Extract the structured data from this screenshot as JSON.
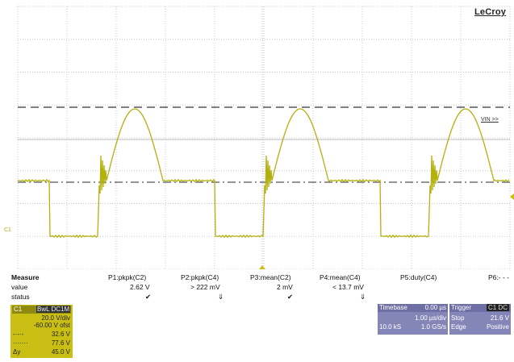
{
  "brand": "LeCroy",
  "cursor_label": "VIN >>",
  "channel_marker": "C1",
  "measure": {
    "title": "Measure",
    "row_labels": [
      "value",
      "status"
    ],
    "params": [
      {
        "name": "P1:pkpk(C2)",
        "value": "2.62 V",
        "status": "✔"
      },
      {
        "name": "P2:pkpk(C4)",
        "value": "> 222 mV",
        "status": "⇓"
      },
      {
        "name": "P3:mean(C2)",
        "value": "2 mV",
        "status": "✔"
      },
      {
        "name": "P4:mean(C4)",
        "value": "< 13.7 mV",
        "status": "⇓"
      },
      {
        "name": "P5:duty(C4)",
        "value": "",
        "status": ""
      },
      {
        "name": "P6:- - -",
        "value": "",
        "status": ""
      }
    ]
  },
  "channel1": {
    "name": "C1",
    "coupling": "BwL DC1M",
    "scale": "20.0 V/div",
    "offset": "-60.00 V ofst",
    "cursor1_value": "32.6 V",
    "cursor2_value": "77.6 V",
    "delta_label": "Δy",
    "delta_value": "45.0 V"
  },
  "timebase": {
    "label": "Timebase",
    "delay": "0.00 µs",
    "per_div": "1.00 µs/div",
    "samples": "10.0 kS",
    "rate": "1.0 GS/s"
  },
  "trigger": {
    "label": "Trigger",
    "channels": "C1 DC",
    "mode": "Stop",
    "level": "21.6 V",
    "type": "Edge",
    "slope": "Positive"
  },
  "colors": {
    "trace": "#b4b00e",
    "grid": "#c8c8c8",
    "panel": "#8586b8",
    "channel_box": "#c9bf14"
  }
}
